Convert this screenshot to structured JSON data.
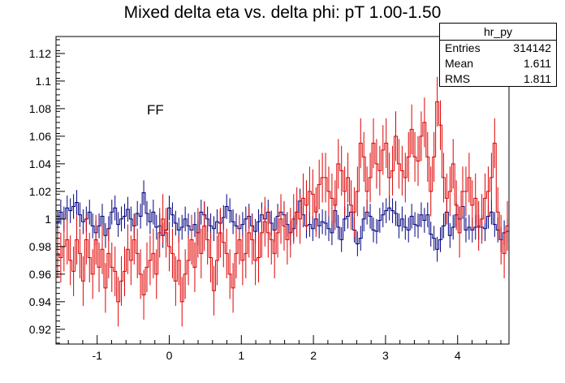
{
  "chart_data": {
    "type": "line",
    "title": "Mixed delta eta vs. delta phi: pT 1.00-1.50",
    "xlabel": "",
    "ylabel": "",
    "xlim": [
      -1.5708,
      4.7124
    ],
    "ylim": [
      0.9093,
      1.1323
    ],
    "x_ticks": [
      -1,
      0,
      1,
      2,
      3,
      4
    ],
    "y_ticks": [
      0.92,
      0.94,
      0.96,
      0.98,
      1,
      1.02,
      1.04,
      1.06,
      1.08,
      1.1,
      1.12
    ],
    "x_tick_labels": [
      "-1",
      "0",
      "1",
      "2",
      "3",
      "4"
    ],
    "y_tick_labels": [
      "0.92",
      "0.94",
      "0.96",
      "0.98",
      "1",
      "1.02",
      "1.04",
      "1.06",
      "1.08",
      "1.1",
      "1.12"
    ],
    "grid": false,
    "series": [
      {
        "color": "#00007f",
        "style": "step-with-error-bars",
        "error": 0.009,
        "values": [
          0.997,
          1.005,
          1.0,
          1.008,
          1.006,
          1.009,
          1.012,
          1.003,
          0.998,
          1.0,
          1.005,
          0.995,
          0.99,
          0.995,
          1.002,
          0.988,
          0.993,
          1.005,
          1.008,
          0.996,
          1.0,
          1.002,
          1.007,
          1.0,
          0.995,
          1.004,
          1.002,
          1.019,
          1.004,
          0.998,
          1.005,
          0.994,
          0.995,
          0.988,
          0.992,
          1.008,
          1.003,
          0.997,
          0.992,
          0.994,
          1.0,
          0.995,
          0.992,
          0.996,
          0.99,
          1.005,
          1.003,
          1.0,
          0.995,
          0.993,
          0.998,
          0.997,
          1.001,
          1.009,
          1.006,
          0.998,
          0.995,
          0.993,
          0.996,
          1.0,
          1.002,
          0.995,
          0.991,
          0.998,
          1.003,
          1.0,
          1.005,
          0.997,
          0.992,
          1.002,
          1.005,
          1.003,
          0.996,
          0.99,
          0.993,
          1.005,
          1.013,
          1.003,
          0.995,
          0.996,
          0.993,
          1.0,
          0.995,
          0.998,
          0.997,
          0.993,
          0.99,
          1.006,
          0.994,
          0.985,
          1.0,
          1.002,
          1.005,
          0.992,
          0.982,
          0.986,
          1.0,
          1.005,
          1.002,
          0.992,
          0.991,
          0.999,
          1.003,
          1.006,
          1.008,
          1.006,
          1.004,
          0.995,
          1.0,
          0.994,
          0.992,
          1.002,
          0.996,
          0.995,
          1.003,
          0.999,
          1.003,
          0.989,
          0.986,
          0.978,
          0.985,
          0.995,
          1.005,
          0.988,
          0.994,
          1.003,
          1.0,
          1.009,
          0.992,
          0.994,
          0.992,
          0.994,
          0.994,
          0.994,
          0.993,
          1.002,
          1.005,
          0.996,
          0.992,
          0.985,
          0.99,
          0.991
        ]
      },
      {
        "color": "#e00000",
        "style": "step-with-error-bars",
        "error": 0.018,
        "values": [
          0.975,
          0.972,
          0.98,
          0.985,
          0.97,
          0.962,
          0.985,
          0.975,
          0.955,
          0.985,
          0.972,
          0.96,
          0.985,
          0.965,
          0.978,
          0.95,
          0.975,
          0.965,
          0.962,
          0.94,
          0.955,
          0.962,
          0.978,
          0.97,
          0.985,
          0.975,
          0.96,
          0.945,
          0.965,
          0.97,
          0.975,
          0.96,
          0.99,
          1.0,
          0.99,
          0.98,
          0.975,
          0.955,
          0.97,
          0.94,
          0.96,
          0.97,
          0.985,
          0.965,
          0.99,
          0.975,
          0.995,
          0.985,
          0.972,
          0.948,
          0.97,
          0.99,
          0.983,
          0.975,
          0.96,
          0.95,
          0.975,
          0.985,
          0.97,
          0.975,
          0.99,
          0.985,
          0.97,
          0.972,
          0.99,
          0.998,
          0.99,
          0.985,
          0.975,
          0.99,
          1.0,
          0.995,
          0.985,
          0.99,
          1.0,
          1.005,
          1.0,
          1.015,
          1.01,
          1.02,
          1.018,
          1.005,
          1.025,
          1.03,
          1.03,
          1.02,
          1.015,
          1.01,
          1.04,
          1.035,
          1.02,
          1.03,
          1.01,
          1.005,
          1.02,
          1.055,
          1.045,
          1.02,
          1.03,
          1.055,
          1.04,
          1.035,
          1.05,
          1.055,
          1.03,
          1.035,
          1.06,
          1.04,
          1.035,
          1.03,
          1.045,
          1.065,
          1.045,
          1.042,
          1.06,
          1.07,
          1.045,
          1.02,
          1.045,
          1.085,
          1.068,
          1.03,
          1.015,
          1.02,
          1.04,
          1.01,
          0.99,
          1.02,
          1.02,
          1.03,
          1.01,
          1.015,
          0.995,
          1.0,
          1.015,
          1.02,
          1.03,
          1.055,
          1.005,
          0.985,
          0.975,
          0.995
        ]
      }
    ],
    "annotations": [
      {
        "text": "FF"
      }
    ],
    "stats_box": {
      "name": "hr_py",
      "rows": [
        {
          "label": "Entries",
          "value": "314142"
        },
        {
          "label": "Mean",
          "value": "1.611"
        },
        {
          "label": "RMS",
          "value": "1.811"
        }
      ]
    }
  }
}
